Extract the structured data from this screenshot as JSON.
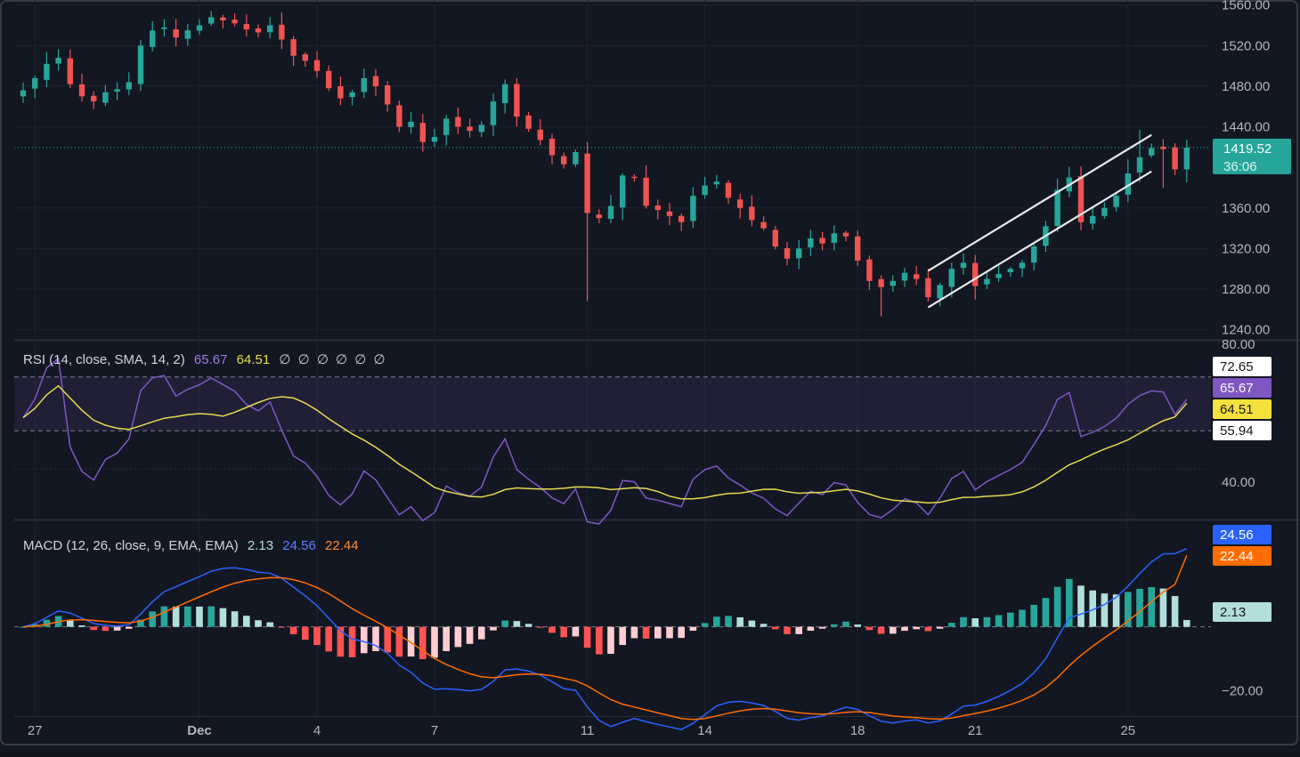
{
  "price_axis": {
    "ticks": [
      {
        "v": 1560,
        "label": "1560.00"
      },
      {
        "v": 1520,
        "label": "1520.00"
      },
      {
        "v": 1480,
        "label": "1480.00"
      },
      {
        "v": 1440,
        "label": "1440.00"
      },
      {
        "v": 1360,
        "label": "1360.00"
      },
      {
        "v": 1320,
        "label": "1320.00"
      },
      {
        "v": 1280,
        "label": "1280.00"
      },
      {
        "v": 1240,
        "label": "1240.00"
      }
    ],
    "last_price": "1419.52",
    "countdown": "36:06"
  },
  "x_axis": {
    "labels": [
      {
        "t": 1,
        "label": "27"
      },
      {
        "t": 15,
        "label": "Dec"
      },
      {
        "t": 25,
        "label": "4"
      },
      {
        "t": 35,
        "label": "7"
      },
      {
        "t": 48,
        "label": "11"
      },
      {
        "t": 58,
        "label": "14"
      },
      {
        "t": 71,
        "label": "18"
      },
      {
        "t": 81,
        "label": "21"
      },
      {
        "t": 94,
        "label": "25"
      }
    ]
  },
  "rsi": {
    "legend_name": "RSI (14, close, SMA, 14, 2)",
    "value": "65.67",
    "sma_value": "64.51",
    "extra": "∅ ∅ ∅ ∅ ∅ ∅",
    "axis_top": "80.00",
    "axis_mid": "40.00",
    "badge_upper": "72.65",
    "badge_lower": "55.94"
  },
  "macd": {
    "legend_name": "MACD (12, 26, close, 9, EMA, EMA)",
    "hist": "2.13",
    "macd_val": "24.56",
    "signal_val": "22.44",
    "axis_neg": "−20.00"
  },
  "colors": {
    "up": "#26a69a",
    "down": "#ef5350",
    "rsi_line": "#7e57c2",
    "rsi_sma": "#e6d94e",
    "macd_line": "#2962ff",
    "signal_line": "#ff6d00",
    "last_badge": "#26a69a"
  },
  "chart_data": {
    "type": "candlestick",
    "x_unit": "bar_index",
    "price": {
      "ylim": [
        1230,
        1565
      ],
      "last": 1419.52,
      "closes": [
        1476,
        1488,
        1502,
        1508,
        1482,
        1470,
        1465,
        1474,
        1477,
        1484,
        1520,
        1535,
        1538,
        1528,
        1535,
        1540,
        1548,
        1545,
        1542,
        1536,
        1533,
        1540,
        1526,
        1510,
        1505,
        1495,
        1478,
        1468,
        1474,
        1488,
        1480,
        1462,
        1440,
        1445,
        1425,
        1430,
        1448,
        1440,
        1436,
        1442,
        1465,
        1482,
        1450,
        1438,
        1427,
        1412,
        1403,
        1415,
        1355,
        1350,
        1362,
        1392,
        1390,
        1362,
        1358,
        1352,
        1346,
        1372,
        1382,
        1386,
        1370,
        1360,
        1348,
        1340,
        1322,
        1310,
        1320,
        1330,
        1325,
        1335,
        1332,
        1308,
        1288,
        1282,
        1288,
        1296,
        1290,
        1272,
        1284,
        1300,
        1306,
        1283,
        1290,
        1295,
        1300,
        1306,
        1322,
        1342,
        1378,
        1390,
        1346,
        1352,
        1360,
        1372,
        1394,
        1410,
        1419,
        1418,
        1398,
        1419.52
      ],
      "channel": {
        "lower": [
          [
            77,
            1262
          ],
          [
            96,
            1396
          ]
        ],
        "upper": [
          [
            77,
            1298
          ],
          [
            96,
            1432
          ]
        ]
      }
    },
    "rsi": {
      "ylim": [
        30,
        80
      ],
      "upper_band": 72.65,
      "lower_band": 55.94,
      "rsi_last": 65.67,
      "sma_last": 64.51
    },
    "macd": {
      "macd_last": 24.56,
      "signal_last": 22.44,
      "hist_last": 2.13
    }
  }
}
